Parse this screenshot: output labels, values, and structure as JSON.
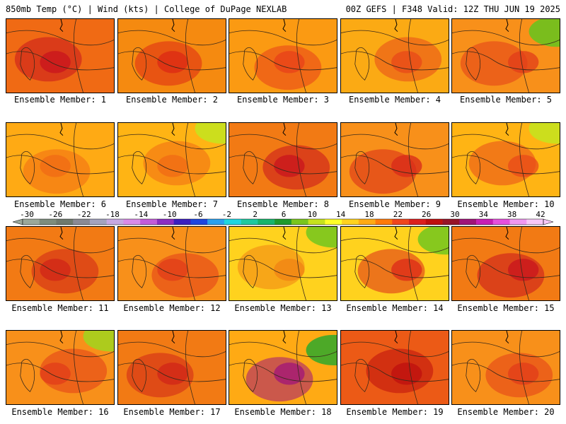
{
  "header": {
    "left": "850mb Temp (°C) | Wind (kts) | College of DuPage NEXLAB",
    "right": "00Z GEFS | F348 Valid: 12Z THU JUN 19 2025"
  },
  "colorbar": {
    "labels": [
      "-30",
      "-26",
      "-22",
      "-18",
      "-14",
      "-10",
      "-6",
      "-2",
      "2",
      "6",
      "10",
      "14",
      "18",
      "22",
      "26",
      "30",
      "34",
      "38",
      "42"
    ],
    "colors": [
      "#9aa89a",
      "#7d8d7d",
      "#6e7a6e",
      "#8a8a94",
      "#a3a3bf",
      "#c6a8e2",
      "#d98be8",
      "#c35cd9",
      "#8c2ec2",
      "#3a1fbf",
      "#1e46e0",
      "#2aa0ef",
      "#1fd6e0",
      "#1ec9a0",
      "#19b46c",
      "#1f9a2e",
      "#7ac61e",
      "#c6e21e",
      "#ffff28",
      "#ffd21e",
      "#ffaa14",
      "#ff7a0a",
      "#f0461e",
      "#dc1e1e",
      "#be0f0f",
      "#961428",
      "#a01478",
      "#c81eb4",
      "#e650dc",
      "#f098f0",
      "#f8c8f8"
    ]
  },
  "members": [
    {
      "label": "Ensemble Member: 1",
      "base": "#f06a14",
      "hot": "#c8141e",
      "cool": ""
    },
    {
      "label": "Ensemble Member: 2",
      "base": "#f58a10",
      "hot": "#dc2814",
      "cool": ""
    },
    {
      "label": "Ensemble Member: 3",
      "base": "#fb9a12",
      "hot": "#e8401a",
      "cool": ""
    },
    {
      "label": "Ensemble Member: 4",
      "base": "#fbaa14",
      "hot": "#e8481a",
      "cool": ""
    },
    {
      "label": "Ensemble Member: 5",
      "base": "#f8901a",
      "hot": "#e23c1a",
      "cool": "#6cc21e"
    },
    {
      "label": "Ensemble Member: 6",
      "base": "#ffaa14",
      "hot": "#f06a14",
      "cool": ""
    },
    {
      "label": "Ensemble Member: 7",
      "base": "#ffb414",
      "hot": "#f06a14",
      "cool": "#c6e21e"
    },
    {
      "label": "Ensemble Member: 8",
      "base": "#f27a14",
      "hot": "#c8141e",
      "cool": ""
    },
    {
      "label": "Ensemble Member: 9",
      "base": "#f8901a",
      "hot": "#d8281a",
      "cool": ""
    },
    {
      "label": "Ensemble Member: 10",
      "base": "#ffb414",
      "hot": "#e84a1a",
      "cool": "#c6e21e"
    },
    {
      "label": "Ensemble Member: 11",
      "base": "#f27a14",
      "hot": "#d02418",
      "cool": ""
    },
    {
      "label": "Ensemble Member: 12",
      "base": "#f8901a",
      "hot": "#e23c1a",
      "cool": ""
    },
    {
      "label": "Ensemble Member: 13",
      "base": "#ffd21e",
      "hot": "#f08214",
      "cool": "#7ac61e"
    },
    {
      "label": "Ensemble Member: 14",
      "base": "#ffd21e",
      "hot": "#dc281a",
      "cool": "#7ac61e"
    },
    {
      "label": "Ensemble Member: 15",
      "base": "#f27a14",
      "hot": "#c8141e",
      "cool": ""
    },
    {
      "label": "Ensemble Member: 16",
      "base": "#f8901a",
      "hot": "#e23c1a",
      "cool": "#a4d21e"
    },
    {
      "label": "Ensemble Member: 17",
      "base": "#f27a14",
      "hot": "#d02418",
      "cool": ""
    },
    {
      "label": "Ensemble Member: 18",
      "base": "#ffaa14",
      "hot": "#a01478",
      "cool": "#3aa82a"
    },
    {
      "label": "Ensemble Member: 19",
      "base": "#ec5a16",
      "hot": "#be0f0f",
      "cool": ""
    },
    {
      "label": "Ensemble Member: 20",
      "base": "#f8901a",
      "hot": "#e23c1a",
      "cool": ""
    }
  ]
}
